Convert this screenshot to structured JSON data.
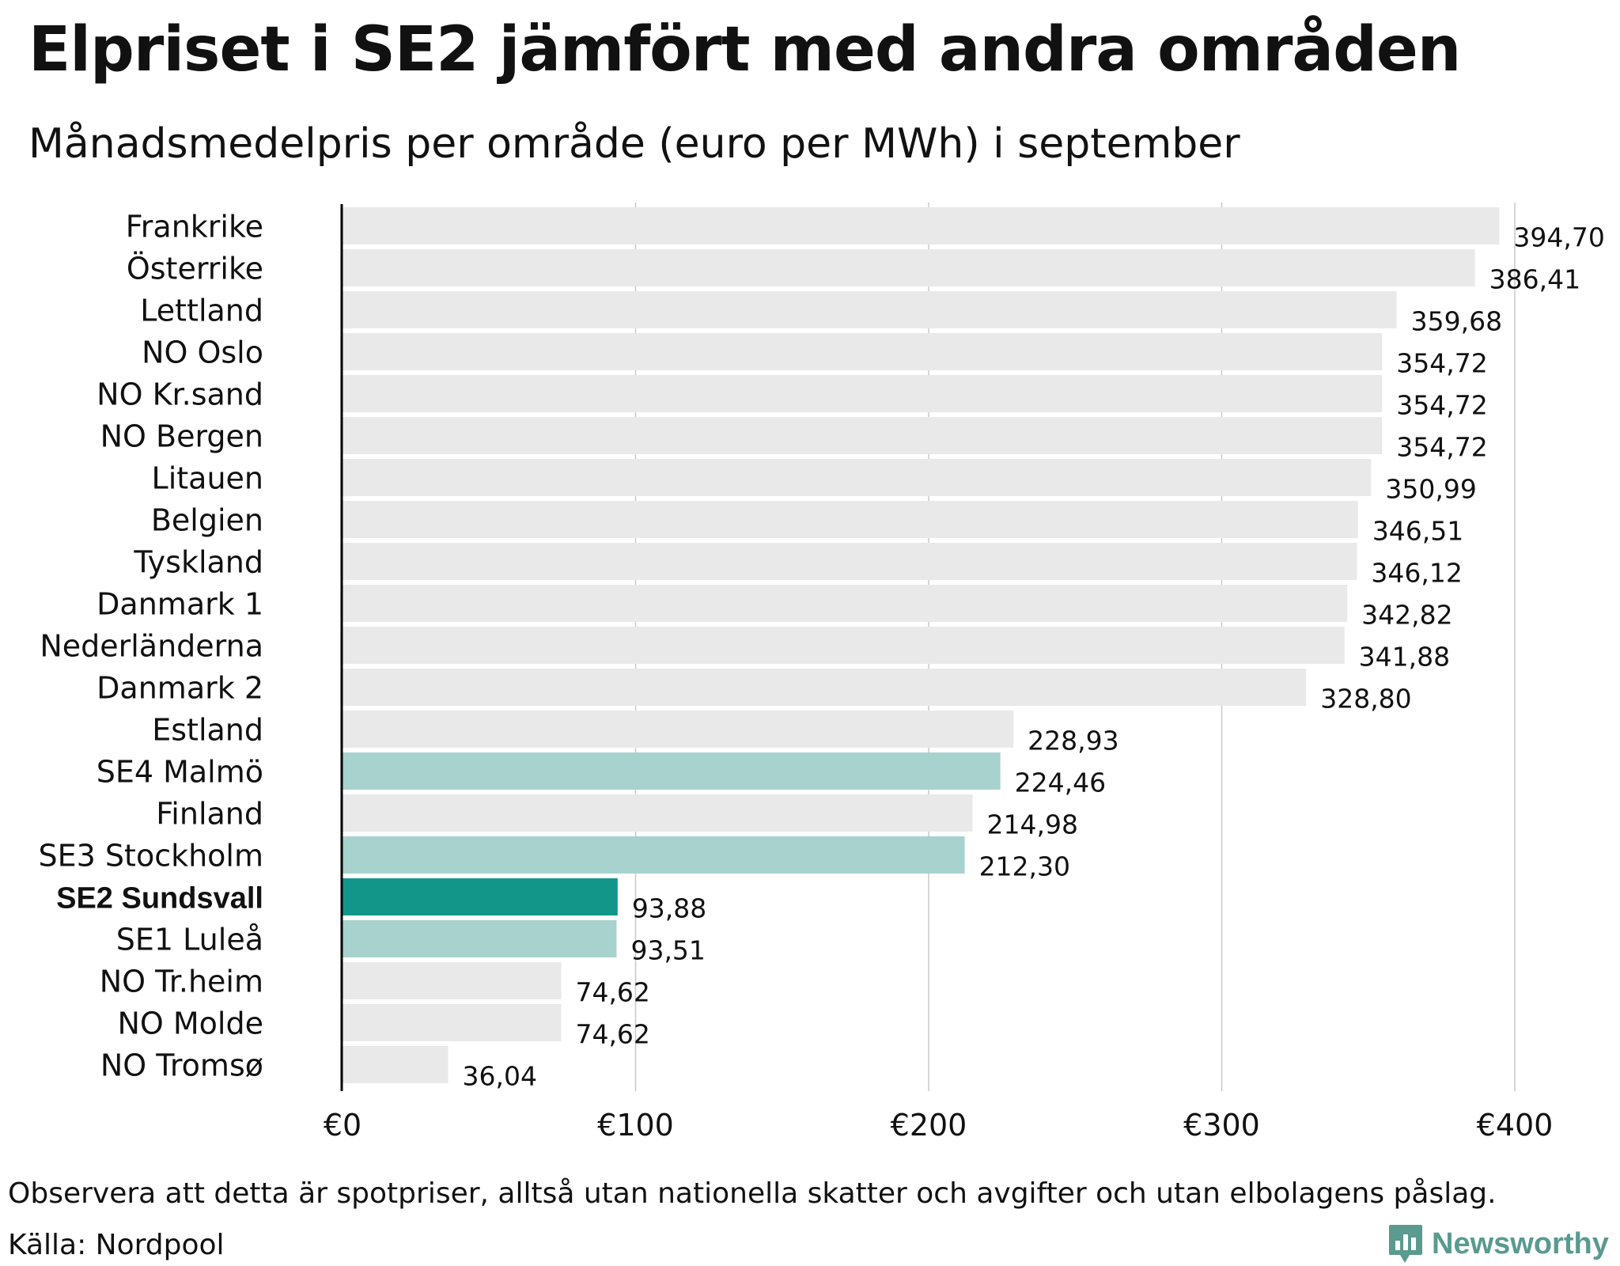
{
  "title": "Elpriset i SE2 jämfört med andra områden",
  "subtitle": "Månadsmedelpris per område (euro per MWh) i september",
  "footer": {
    "note": "Observera att detta är spotpriser, alltså utan nationella skatter och avgifter och utan elbolagens påslag.",
    "source": "Källa: Nordpool",
    "brand": "Newsworthy"
  },
  "colors": {
    "default_bar": "#e9e9e9",
    "swedish_bar": "#a7d2cd",
    "highlight_bar": "#13968a",
    "grid": "#c8c8c8",
    "axis": "#000000",
    "text": "#111111",
    "brand": "#5a9a8f"
  },
  "chart_data": {
    "type": "bar",
    "orientation": "horizontal",
    "title": "Elpriset i SE2 jämfört med andra områden",
    "subtitle": "Månadsmedelpris per område (euro per MWh) i september",
    "xlabel": "",
    "ylabel": "",
    "xlim": [
      0,
      400
    ],
    "xticks": [
      0,
      100,
      200,
      300,
      400
    ],
    "xtick_labels": [
      "€0",
      "€100",
      "€200",
      "€300",
      "€400"
    ],
    "grid": true,
    "categories": [
      "Frankrike",
      "Österrike",
      "Lettland",
      "NO Oslo",
      "NO Kr.sand",
      "NO Bergen",
      "Litauen",
      "Belgien",
      "Tyskland",
      "Danmark 1",
      "Nederländerna",
      "Danmark 2",
      "Estland",
      "SE4 Malmö",
      "Finland",
      "SE3 Stockholm",
      "SE2 Sundsvall",
      "SE1 Luleå",
      "NO Tr.heim",
      "NO Molde",
      "NO Tromsø"
    ],
    "values": [
      394.7,
      386.41,
      359.68,
      354.72,
      354.72,
      354.72,
      350.99,
      346.51,
      346.12,
      342.82,
      341.88,
      328.8,
      228.93,
      224.46,
      214.98,
      212.3,
      93.88,
      93.51,
      74.62,
      74.62,
      36.04
    ],
    "value_labels": [
      "394,70",
      "386,41",
      "359,68",
      "354,72",
      "354,72",
      "354,72",
      "350,99",
      "346,51",
      "346,12",
      "342,82",
      "341,88",
      "328,80",
      "228,93",
      "224,46",
      "214,98",
      "212,30",
      "93,88",
      "93,51",
      "74,62",
      "74,62",
      "36,04"
    ],
    "group": [
      "other",
      "other",
      "other",
      "other",
      "other",
      "other",
      "other",
      "other",
      "other",
      "other",
      "other",
      "other",
      "other",
      "swedish",
      "other",
      "swedish",
      "highlight",
      "swedish",
      "other",
      "other",
      "other"
    ]
  }
}
